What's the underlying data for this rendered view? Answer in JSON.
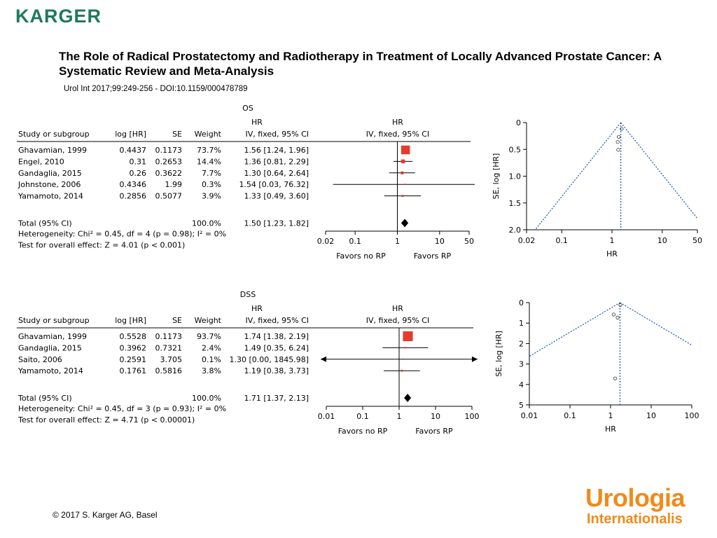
{
  "publisher_logo": "KARGER",
  "title": "The Role of Radical Prostatectomy and Radiotherapy in Treatment of Locally Advanced Prostate Cancer: A Systematic Review and Meta-Analysis",
  "citation": "Urol Int 2017;99:249-256 -  DOI:10.1159/000478789",
  "copyright": "© 2017 S. Karger AG, Basel",
  "journal_logo": {
    "line1": "Urologia",
    "line2": "Internationalis"
  },
  "colors": {
    "accent_green": "#1f7a5a",
    "square_red": "#e53b2c",
    "funnel_blue": "#2a5fae",
    "journal_orange": "#f08a1a"
  },
  "chart_data": [
    {
      "type": "table",
      "panel": "OS",
      "columns": [
        "Study or subgroup",
        "log [HR]",
        "SE",
        "Weight",
        "IV, fixed, 95% CI"
      ],
      "hr_header": "HR",
      "plot_header": "HR",
      "plot_subheader": "IV, fixed, 95% CI",
      "rows": [
        {
          "study": "Ghavamian, 1999",
          "loghr": "0.4437",
          "se": "0.1173",
          "weight": "73.7%",
          "ci": "1.56 [1.24, 1.96]",
          "hr": 1.56,
          "lo": 1.24,
          "hi": 1.96,
          "w": 73.7
        },
        {
          "study": "Engel, 2010",
          "loghr": "0.31",
          "se": "0.2653",
          "weight": "14.4%",
          "ci": "1.36 [0.81, 2.29]",
          "hr": 1.36,
          "lo": 0.81,
          "hi": 2.29,
          "w": 14.4
        },
        {
          "study": "Gandaglia, 2015",
          "loghr": "0.26",
          "se": "0.3622",
          "weight": "7.7%",
          "ci": "1.30 [0.64, 2.64]",
          "hr": 1.3,
          "lo": 0.64,
          "hi": 2.64,
          "w": 7.7
        },
        {
          "study": "Johnstone, 2006",
          "loghr": "0.4346",
          "se": "1.99",
          "weight": "0.3%",
          "ci": "1.54 [0.03, 76.32]",
          "hr": 1.54,
          "lo": 0.03,
          "hi": 76.32,
          "w": 0.3
        },
        {
          "study": "Yamamoto, 2014",
          "loghr": "0.2856",
          "se": "0.5077",
          "weight": "3.9%",
          "ci": "1.33 [0.49, 3.60]",
          "hr": 1.33,
          "lo": 0.49,
          "hi": 3.6,
          "w": 3.9
        }
      ],
      "total": {
        "label": "Total (95% CI)",
        "weight": "100.0%",
        "ci": "1.50 [1.23, 1.82]",
        "hr": 1.5,
        "lo": 1.23,
        "hi": 1.82
      },
      "heterogeneity": "Heterogeneity: Chi² = 0.45, df = 4 (p = 0.98); I² = 0%",
      "overall_effect": "Test for overall effect: Z = 4.01 (p < 0.001)",
      "xscale": "log",
      "xticks": [
        0.02,
        0.1,
        1,
        10,
        50
      ],
      "xtick_labels": [
        "0.02",
        "0.1",
        "1",
        "10",
        "50"
      ],
      "favors_left": "Favors no RP",
      "favors_right": "Favors RP"
    },
    {
      "type": "scatter",
      "panel": "OS funnel",
      "xscale": "log",
      "xlabel": "HR",
      "ylabel": "SE, log [HR]",
      "xticks": [
        0.02,
        0.1,
        1,
        10,
        50
      ],
      "xtick_labels": [
        "0.02",
        "0.1",
        "1",
        "10",
        "50"
      ],
      "yticks": [
        0,
        0.5,
        1.0,
        1.5,
        2.0
      ],
      "ytick_labels": [
        "0",
        "0.5",
        "1.0",
        "1.5",
        "2.0"
      ],
      "ylim": [
        0,
        2.0
      ],
      "pooled_hr": 1.5,
      "points": [
        {
          "hr": 1.56,
          "se": 0.1173
        },
        {
          "hr": 1.36,
          "se": 0.2653
        },
        {
          "hr": 1.3,
          "se": 0.3622
        },
        {
          "hr": 1.33,
          "se": 0.5077
        }
      ]
    },
    {
      "type": "table",
      "panel": "DSS",
      "columns": [
        "Study or subgroup",
        "log [HR]",
        "SE",
        "Weight",
        "IV, fixed, 95% CI"
      ],
      "hr_header": "HR",
      "plot_header": "HR",
      "plot_subheader": "IV, fixed, 95% CI",
      "rows": [
        {
          "study": "Ghavamian, 1999",
          "loghr": "0.5528",
          "se": "0.1173",
          "weight": "93.7%",
          "ci": "1.74 [1.38, 2.19]",
          "hr": 1.74,
          "lo": 1.38,
          "hi": 2.19,
          "w": 93.7
        },
        {
          "study": "Gandaglia, 2015",
          "loghr": "0.3962",
          "se": "0.7321",
          "weight": "2.4%",
          "ci": "1.49 [0.35, 6.24]",
          "hr": 1.49,
          "lo": 0.35,
          "hi": 6.24,
          "w": 2.4
        },
        {
          "study": "Saito, 2006",
          "loghr": "0.2591",
          "se": "3.705",
          "weight": "0.1%",
          "ci": "1.30 [0.00, 1845.98]",
          "hr": 1.3,
          "lo": 0.001,
          "hi": 1845.98,
          "w": 0.1,
          "arrows": true
        },
        {
          "study": "Yamamoto, 2014",
          "loghr": "0.1761",
          "se": "0.5816",
          "weight": "3.8%",
          "ci": "1.19 [0.38, 3.73]",
          "hr": 1.19,
          "lo": 0.38,
          "hi": 3.73,
          "w": 3.8
        }
      ],
      "total": {
        "label": "Total (95% CI)",
        "weight": "100.0%",
        "ci": "1.71 [1.37, 2.13]",
        "hr": 1.71,
        "lo": 1.37,
        "hi": 2.13
      },
      "heterogeneity": "Heterogeneity: Chi² = 0.45, df = 3 (p = 0.93); I² = 0%",
      "overall_effect": "Test for overall effect: Z = 4.71 (p < 0.00001)",
      "xscale": "log",
      "xticks": [
        0.01,
        0.1,
        1,
        10,
        100
      ],
      "xtick_labels": [
        "0.01",
        "0.1",
        "1",
        "10",
        "100"
      ],
      "favors_left": "Favors no RP",
      "favors_right": "Favors RP"
    },
    {
      "type": "scatter",
      "panel": "DSS funnel",
      "xscale": "log",
      "xlabel": "HR",
      "ylabel": "SE, log [HR]",
      "xticks": [
        0.01,
        0.1,
        1,
        10,
        100
      ],
      "xtick_labels": [
        "0.01",
        "0.1",
        "1",
        "10",
        "100"
      ],
      "yticks": [
        0,
        1,
        2,
        3,
        4,
        5
      ],
      "ytick_labels": [
        "0",
        "1",
        "2",
        "3",
        "4",
        "5"
      ],
      "ylim": [
        0,
        5
      ],
      "pooled_hr": 1.71,
      "points": [
        {
          "hr": 1.74,
          "se": 0.1173
        },
        {
          "hr": 1.49,
          "se": 0.7321
        },
        {
          "hr": 1.19,
          "se": 0.5816
        },
        {
          "hr": 1.3,
          "se": 3.705
        }
      ]
    }
  ],
  "labels": {
    "os": "OS",
    "dss": "DSS"
  }
}
